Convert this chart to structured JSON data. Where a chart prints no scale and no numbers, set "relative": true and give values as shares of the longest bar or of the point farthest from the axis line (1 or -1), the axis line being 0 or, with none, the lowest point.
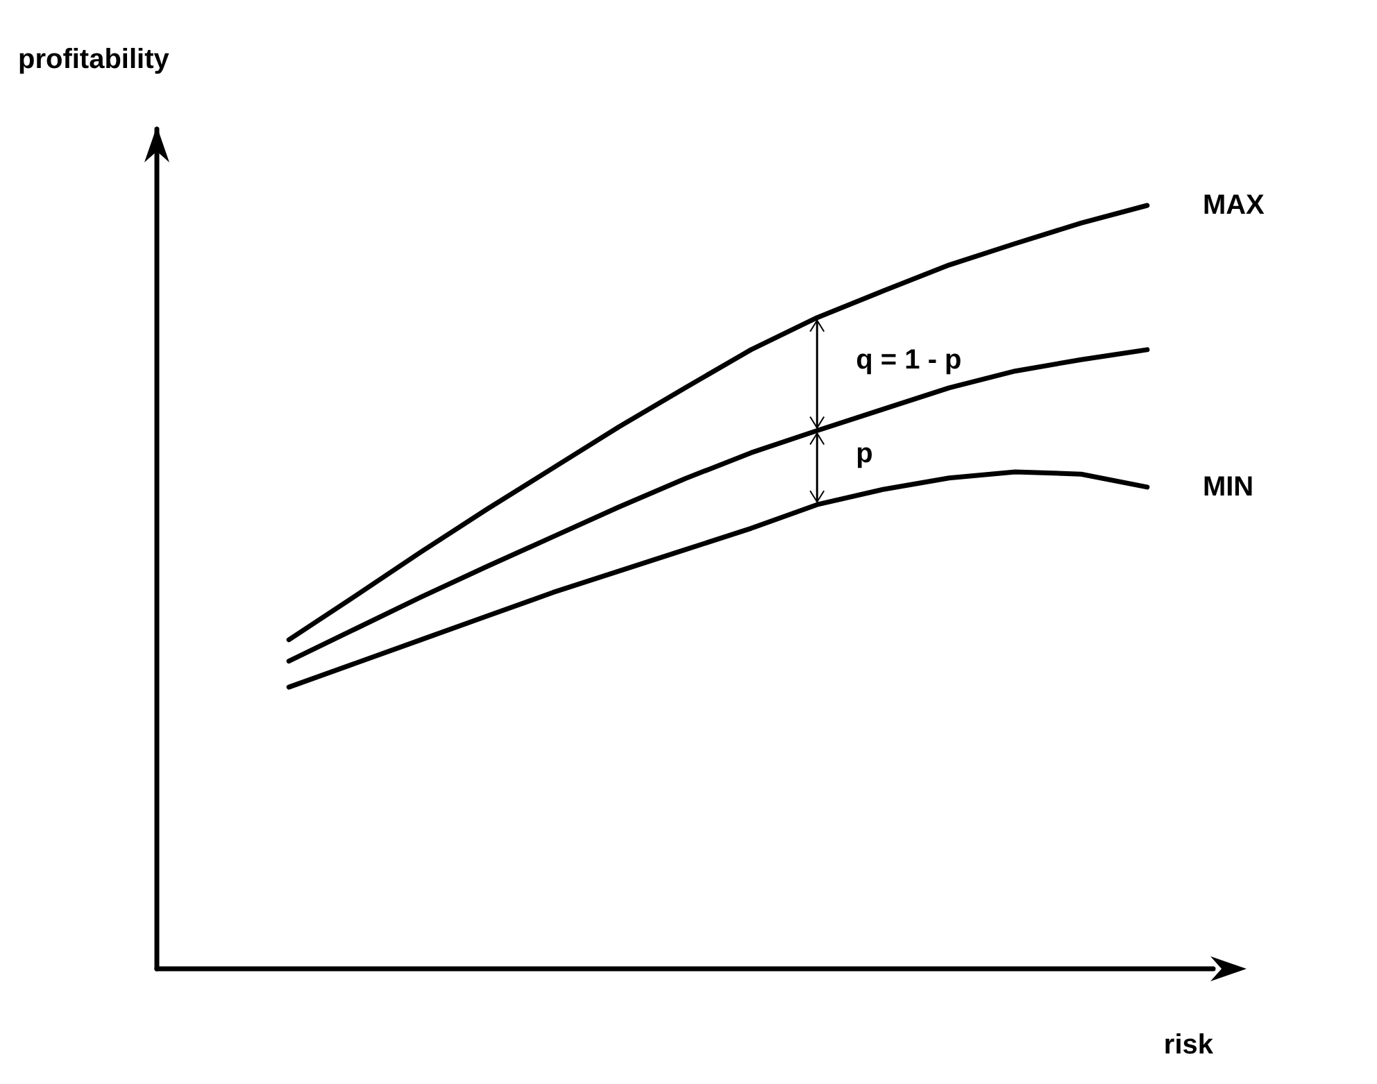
{
  "chart_data": {
    "type": "line",
    "relative": true,
    "xlabel": "risk",
    "ylabel": "profitability",
    "categories": [
      null,
      null,
      null,
      null,
      null,
      null,
      null,
      null,
      null,
      null,
      null,
      null,
      null,
      null,
      null,
      null,
      null
    ],
    "series": [
      {
        "name": "MAX",
        "color": "#000000",
        "values": [
          null,
          null,
          0.431,
          0.488,
          0.546,
          0.602,
          0.656,
          0.71,
          0.761,
          0.811,
          0.853,
          0.888,
          0.922,
          0.95,
          0.977,
          1.0,
          null
        ]
      },
      {
        "color": "#000000",
        "values": [
          null,
          null,
          0.403,
          0.445,
          0.487,
          0.527,
          0.566,
          0.605,
          0.642,
          0.676,
          0.705,
          0.733,
          0.761,
          0.783,
          0.798,
          0.811,
          null
        ]
      },
      {
        "name": "MIN",
        "color": "#000000",
        "values": [
          null,
          null,
          0.369,
          0.4,
          0.431,
          0.462,
          0.493,
          0.521,
          0.549,
          0.577,
          0.608,
          0.628,
          0.643,
          0.651,
          0.648,
          0.631,
          null
        ]
      }
    ],
    "annotations": [
      "q = 1 - p",
      "p"
    ],
    "marker": "none",
    "line_style": "solid",
    "grid": false,
    "legend": false
  }
}
